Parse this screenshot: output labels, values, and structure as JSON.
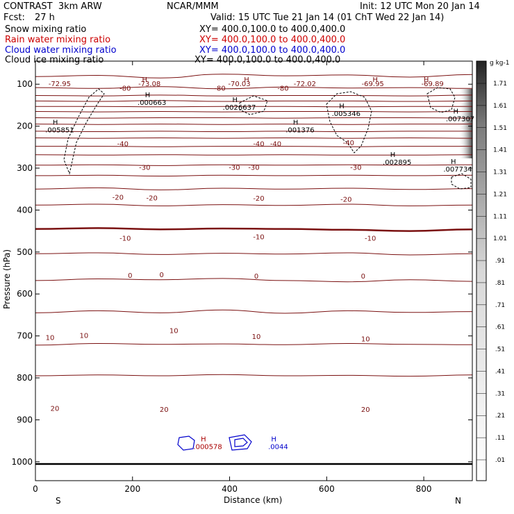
{
  "header": {
    "title": "CONTRAST  3km ARW",
    "org": "NCAR/MMM",
    "init": "Init: 12 UTC Mon 20 Jan 14",
    "fcst_label": "Fcst:",
    "fcst_value": "27 h",
    "valid": "Valid: 15 UTC Tue 21 Jan 14 (01 ChT Wed 22 Jan 14)"
  },
  "fields": [
    {
      "name": "Snow mixing ratio",
      "xy": "XY= 400.0,100.0 to 400.0,400.0",
      "color": "#000000"
    },
    {
      "name": "Rain water mixing ratio",
      "xy": "XY= 400.0,100.0 to 400.0,400.0",
      "color": "#cc0000"
    },
    {
      "name": "Cloud water mixing ratio",
      "xy": "XY= 400.0,100.0 to 400.0,400.0",
      "color": "#0000cc"
    },
    {
      "name": "Cloud ice mixing ratio",
      "xy": "XY= 400.0,100.0 to 400.0,400.0",
      "color": "#000000"
    }
  ],
  "colors": {
    "temperature": "#7a1010",
    "freezing": "#7a1010",
    "terrain": "#000000",
    "cloud_water": "#0000cc",
    "rain": "#aa0000"
  },
  "chart_data": {
    "type": "contour-cross-section",
    "xlabel": "Distance (km)",
    "ylabel": "Pressure (hPa)",
    "xlim": [
      0,
      900
    ],
    "ylim": [
      1045,
      45
    ],
    "x_ticks": [
      0,
      200,
      400,
      600,
      800
    ],
    "x_tick_labels": [
      "0",
      "200",
      "400",
      "600",
      "800"
    ],
    "y_ticks": [
      100,
      200,
      300,
      400,
      500,
      600,
      700,
      800,
      900,
      1000
    ],
    "y_tick_labels": [
      "100",
      "200",
      "300",
      "400",
      "500",
      "600",
      "700",
      "800",
      "900",
      "1000"
    ],
    "end_labels": {
      "left": "S",
      "right": "N"
    },
    "temperature_contours": [
      {
        "value": -80,
        "p": [
          82,
          79,
          85,
          76,
          80,
          78,
          83,
          77
        ]
      },
      {
        "value": -75,
        "p": [
          108,
          110,
          106,
          111,
          107,
          109,
          108,
          110
        ]
      },
      {
        "value": -70,
        "p": [
          127,
          128,
          126,
          128,
          127,
          127,
          128,
          126
        ]
      },
      {
        "value": -65,
        "p": [
          140,
          141,
          139,
          141,
          140,
          140,
          141,
          140
        ]
      },
      {
        "value": -60,
        "p": [
          153,
          153,
          154,
          153,
          153,
          154,
          153,
          153
        ]
      },
      {
        "value": -55,
        "p": [
          165,
          166,
          165,
          166,
          165,
          165,
          166,
          165
        ]
      },
      {
        "value": -50,
        "p": [
          180,
          181,
          180,
          180,
          181,
          180,
          180,
          181
        ]
      },
      {
        "value": -45,
        "p": [
          195,
          196,
          195,
          196,
          195,
          196,
          195,
          195
        ]
      },
      {
        "value": -40,
        "p": [
          212,
          213,
          212,
          213,
          212,
          213,
          212,
          212
        ]
      },
      {
        "value": -35,
        "p": [
          228,
          229,
          228,
          229,
          228,
          229,
          228,
          229
        ]
      },
      {
        "value": -30,
        "p": [
          248,
          248,
          249,
          248,
          248,
          249,
          248,
          248
        ]
      },
      {
        "value": -25,
        "p": [
          268,
          269,
          268,
          269,
          268,
          269,
          269,
          268
        ]
      },
      {
        "value": -20,
        "p": [
          293,
          292,
          294,
          292,
          293,
          292,
          293,
          292
        ]
      },
      {
        "value": -15,
        "p": [
          318,
          317,
          319,
          317,
          318,
          317,
          318,
          317
        ]
      },
      {
        "value": -10,
        "p": [
          350,
          347,
          352,
          348,
          350,
          348,
          351,
          349
        ]
      },
      {
        "value": -5,
        "p": [
          388,
          386,
          390,
          387,
          389,
          386,
          390,
          388
        ]
      },
      {
        "value": 0,
        "p": [
          445,
          443,
          446,
          444,
          445,
          447,
          450,
          446
        ]
      },
      {
        "value": 5,
        "p": [
          504,
          502,
          506,
          503,
          505,
          502,
          507,
          504
        ]
      },
      {
        "value": 10,
        "p": [
          568,
          564,
          566,
          563,
          568,
          571,
          566,
          570
        ]
      },
      {
        "value": 15,
        "p": [
          645,
          640,
          645,
          638,
          646,
          640,
          644,
          642
        ]
      },
      {
        "value": 20,
        "p": [
          722,
          718,
          720,
          719,
          721,
          718,
          720,
          721
        ]
      },
      {
        "value": 25,
        "p": [
          795,
          793,
          795,
          792,
          795,
          794,
          796,
          793
        ]
      }
    ],
    "temperature_labels": [
      {
        "text": "-72.95",
        "x": 50,
        "p": 100
      },
      {
        "text": "-73.08",
        "x": 235,
        "p": 100
      },
      {
        "text": "-70.03",
        "x": 420,
        "p": 100
      },
      {
        "text": "-72.02",
        "x": 555,
        "p": 100
      },
      {
        "text": "-69.95",
        "x": 695,
        "p": 100
      },
      {
        "text": "-69.89",
        "x": 818,
        "p": 100
      },
      {
        "text": "H",
        "x": 225,
        "p": 90
      },
      {
        "text": "H",
        "x": 435,
        "p": 90
      },
      {
        "text": "H",
        "x": 700,
        "p": 90
      },
      {
        "text": "H",
        "x": 805,
        "p": 90
      },
      {
        "text": "-80",
        "x": 185,
        "p": 110
      },
      {
        "text": "-80",
        "x": 380,
        "p": 110
      },
      {
        "text": "-80",
        "x": 510,
        "p": 110
      },
      {
        "text": "-40",
        "x": 180,
        "p": 243
      },
      {
        "text": "-40",
        "x": 460,
        "p": 243
      },
      {
        "text": "-40",
        "x": 495,
        "p": 243
      },
      {
        "text": "-40",
        "x": 645,
        "p": 240
      },
      {
        "text": "-30",
        "x": 225,
        "p": 299
      },
      {
        "text": "-30",
        "x": 410,
        "p": 299
      },
      {
        "text": "-30",
        "x": 450,
        "p": 299
      },
      {
        "text": "-30",
        "x": 660,
        "p": 299
      },
      {
        "text": "-20",
        "x": 170,
        "p": 370
      },
      {
        "text": "-20",
        "x": 240,
        "p": 372
      },
      {
        "text": "-20",
        "x": 460,
        "p": 373
      },
      {
        "text": "-20",
        "x": 640,
        "p": 375
      },
      {
        "text": "-10",
        "x": 185,
        "p": 468
      },
      {
        "text": "-10",
        "x": 460,
        "p": 465
      },
      {
        "text": "-10",
        "x": 690,
        "p": 468
      },
      {
        "text": "0",
        "x": 195,
        "p": 557
      },
      {
        "text": "0",
        "x": 260,
        "p": 555
      },
      {
        "text": "0",
        "x": 455,
        "p": 558
      },
      {
        "text": "0",
        "x": 675,
        "p": 558
      },
      {
        "text": "10",
        "x": 30,
        "p": 705
      },
      {
        "text": "10",
        "x": 100,
        "p": 700
      },
      {
        "text": "10",
        "x": 285,
        "p": 688
      },
      {
        "text": "10",
        "x": 455,
        "p": 702
      },
      {
        "text": "10",
        "x": 680,
        "p": 708
      },
      {
        "text": "20",
        "x": 40,
        "p": 874
      },
      {
        "text": "20",
        "x": 265,
        "p": 876
      },
      {
        "text": "20",
        "x": 680,
        "p": 876
      }
    ],
    "snow_maxima": [
      {
        "text": ".005851",
        "x": 50,
        "p": 215
      },
      {
        "text": ".000663",
        "x": 240,
        "p": 149
      },
      {
        "text": ".0026637",
        "x": 420,
        "p": 161
      },
      {
        "text": ".001376",
        "x": 545,
        "p": 215
      },
      {
        "text": ".005346",
        "x": 640,
        "p": 176
      },
      {
        "text": ".002895",
        "x": 745,
        "p": 292
      },
      {
        "text": ".007307",
        "x": 875,
        "p": 188
      },
      {
        "text": ".007734",
        "x": 870,
        "p": 308
      }
    ],
    "rain_maxima": [
      {
        "text": ".000578",
        "x": 355,
        "p": 970
      }
    ],
    "cloud_water_maxima": [
      {
        "text": ".0044",
        "x": 500,
        "p": 970
      }
    ],
    "colorbar": {
      "unit": "g kg-1",
      "labels": [
        ".01",
        ".11",
        ".21",
        ".31",
        ".41",
        ".51",
        ".61",
        ".71",
        ".81",
        ".91",
        "1.01",
        "1.11",
        "1.21",
        "1.31",
        "1.41",
        "1.51",
        "1.61",
        "1.71"
      ]
    }
  }
}
